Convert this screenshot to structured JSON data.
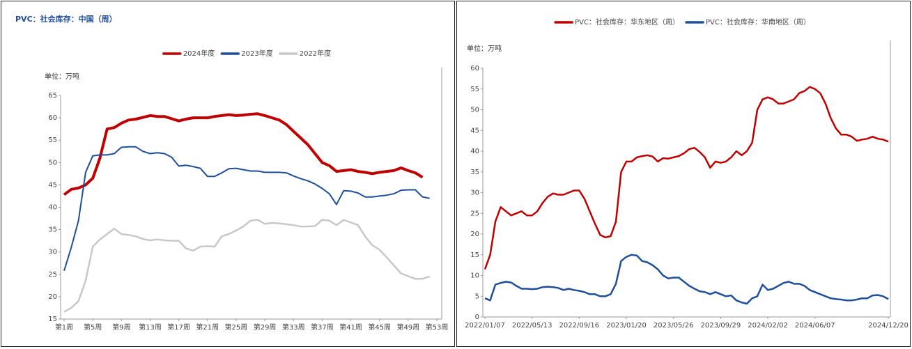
{
  "chart_data": [
    {
      "type": "line",
      "title": "PVC：社会库存：中国（周）",
      "unit_label": "单位：万吨",
      "categories": [
        "第1周",
        null,
        null,
        null,
        "第5周",
        null,
        null,
        null,
        "第9周",
        null,
        null,
        null,
        "第13周",
        null,
        null,
        null,
        "第17周",
        null,
        null,
        null,
        "第21周",
        null,
        null,
        null,
        "第25周",
        null,
        null,
        null,
        "第29周",
        null,
        null,
        null,
        "第33周",
        null,
        null,
        null,
        "第37周",
        null,
        null,
        null,
        "第41周",
        null,
        null,
        null,
        "第45周",
        null,
        null,
        null,
        "第49周",
        null,
        null,
        null,
        "第53周"
      ],
      "series": [
        {
          "name": "2024年度",
          "color": "#c00000",
          "linewidth": 4,
          "values": [
            42.8,
            44,
            44.3,
            45,
            46.5,
            51,
            57.5,
            57.8,
            58.8,
            59.5,
            59.7,
            60.1,
            60.5,
            60.3,
            60.3,
            59.8,
            59.3,
            59.7,
            60,
            60,
            60,
            60.3,
            60.5,
            60.7,
            60.5,
            60.6,
            60.8,
            60.9,
            60.5,
            60,
            59.5,
            58.5,
            57,
            55.5,
            54,
            52,
            50,
            49.3,
            48,
            48.2,
            48.4,
            48,
            47.8,
            47.5,
            47.8,
            48,
            48.2,
            48.8,
            48.2,
            47.7,
            46.7,
            null,
            null
          ]
        },
        {
          "name": "2023年度",
          "color": "#1f4e9a",
          "linewidth": 2,
          "values": [
            25.8,
            31,
            37,
            47.8,
            51.5,
            51.7,
            51.7,
            52,
            53.4,
            53.5,
            53.5,
            52.5,
            52,
            52.2,
            52,
            51.2,
            49.2,
            49.4,
            49.1,
            48.7,
            46.9,
            46.9,
            47.7,
            48.6,
            48.7,
            48.4,
            48.1,
            48.1,
            47.8,
            47.8,
            47.8,
            47.7,
            47,
            46.4,
            45.9,
            45.2,
            44.2,
            43,
            40.6,
            43.7,
            43.6,
            43.2,
            42.3,
            42.3,
            42.5,
            42.7,
            43,
            43.8,
            43.9,
            43.9,
            42.3,
            42,
            null
          ]
        },
        {
          "name": "2022年度",
          "color": "#c8c8c8",
          "linewidth": 2.5,
          "values": [
            16.6,
            17.5,
            19,
            23.6,
            31.2,
            32.8,
            34,
            35.2,
            34,
            33.8,
            33.5,
            32.9,
            32.6,
            32.8,
            32.6,
            32.5,
            32.5,
            30.8,
            30.3,
            31.2,
            31.3,
            31.2,
            33.5,
            34,
            34.8,
            35.7,
            37,
            37.2,
            36.3,
            36.5,
            36.4,
            36.2,
            36,
            35.7,
            35.7,
            35.8,
            37.2,
            37,
            36,
            37.2,
            36.6,
            36,
            33.5,
            31.5,
            30.5,
            28.8,
            27,
            25.2,
            24.6,
            24,
            24,
            24.5,
            null
          ]
        }
      ],
      "ylim": [
        15,
        65
      ],
      "yticks": [
        15,
        20,
        25,
        30,
        35,
        40,
        45,
        50,
        55,
        60,
        65
      ]
    },
    {
      "type": "line",
      "unit_label": "单位：万吨",
      "categories": [
        "2022/01/07",
        null,
        null,
        null,
        null,
        null,
        null,
        null,
        null,
        "2022/05/13",
        null,
        null,
        null,
        null,
        null,
        null,
        null,
        null,
        "2022/09/16",
        null,
        null,
        null,
        null,
        null,
        null,
        null,
        null,
        "2023/01/20",
        null,
        null,
        null,
        null,
        null,
        null,
        null,
        null,
        "2023/05/26",
        null,
        null,
        null,
        null,
        null,
        null,
        null,
        null,
        "2023/09/29",
        null,
        null,
        null,
        null,
        null,
        null,
        null,
        null,
        "2024/02/02",
        null,
        null,
        null,
        null,
        null,
        null,
        null,
        null,
        "2024/06/07",
        null,
        null,
        null,
        null,
        null,
        null,
        null,
        null,
        null,
        null,
        null,
        null,
        null,
        "2024/12/20"
      ],
      "series": [
        {
          "name": "PVC：社会库存：华东地区（周）",
          "color": "#c00000",
          "linewidth": 2.5,
          "values": [
            11.5,
            15,
            23,
            26.5,
            25.5,
            24.5,
            25,
            25.5,
            24.5,
            24.5,
            25.5,
            27.5,
            29,
            29.8,
            29.5,
            29.5,
            30,
            30.5,
            30.5,
            28.5,
            25.5,
            22.5,
            19.8,
            19.2,
            19.5,
            23,
            35,
            37.5,
            37.5,
            38.5,
            38.8,
            39,
            38.7,
            37.5,
            38.3,
            38.2,
            38.5,
            38.8,
            39.5,
            40.5,
            40.8,
            39.8,
            38.5,
            36,
            37.5,
            37.2,
            37.5,
            38.5,
            40,
            39,
            40,
            42,
            50,
            52.5,
            53,
            52.5,
            51.5,
            51.5,
            52,
            52.5,
            54,
            54.5,
            55.5,
            55,
            54,
            51.5,
            48,
            45.5,
            44,
            44,
            43.5,
            42.5,
            42.8,
            43,
            43.5,
            43,
            42.8,
            42.3
          ]
        },
        {
          "name": "PVC：社会库存：华南地区（周）",
          "color": "#1f4e9a",
          "linewidth": 2.5,
          "values": [
            4.5,
            4,
            7.8,
            8.2,
            8.5,
            8.3,
            7.5,
            6.8,
            6.8,
            6.7,
            6.8,
            7.2,
            7.3,
            7.2,
            7,
            6.5,
            6.8,
            6.5,
            6.3,
            6,
            5.5,
            5.5,
            5,
            5,
            5.5,
            8,
            13.5,
            14.5,
            15,
            14.8,
            13.5,
            13.2,
            12.5,
            11.5,
            10,
            9.3,
            9.5,
            9.5,
            8.5,
            7.5,
            6.8,
            6.2,
            6,
            5.5,
            6,
            5.5,
            5,
            5.2,
            4,
            3.5,
            3.2,
            4.5,
            5,
            7.8,
            6.5,
            6.8,
            7.5,
            8.2,
            8.5,
            8,
            8,
            7.5,
            6.5,
            6,
            5.5,
            5,
            4.5,
            4.3,
            4.2,
            4,
            4,
            4.2,
            4.5,
            4.5,
            5.2,
            5.3,
            5,
            4.3
          ]
        }
      ],
      "ylim": [
        0,
        60
      ],
      "yticks": [
        0,
        5,
        10,
        15,
        20,
        25,
        30,
        35,
        40,
        45,
        50,
        55,
        60
      ]
    }
  ]
}
